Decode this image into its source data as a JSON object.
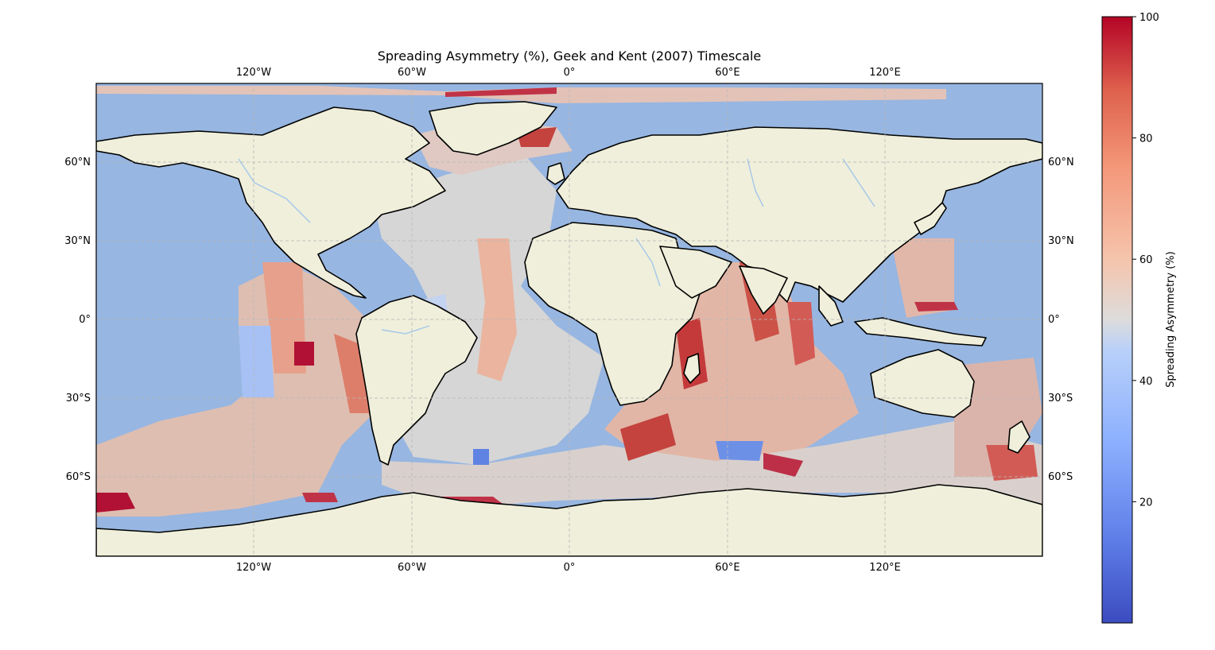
{
  "map": {
    "title": "Spreading Asymmetry (%), Geek and Kent (2007) Timescale",
    "projection": "PlateCarree",
    "lon_range": [
      -180,
      180
    ],
    "lat_range": [
      -90,
      90
    ],
    "gridlines": true,
    "colors": {
      "ocean": "#97b6e1",
      "land": "#efefdb",
      "coast": "#000000",
      "rivers": "#a4c6ea",
      "grid": "#b8b8b8"
    },
    "x_ticks_top": [
      "120°W",
      "60°W",
      "0°",
      "60°E",
      "120°E"
    ],
    "x_ticks_bottom": [
      "120°W",
      "60°W",
      "0°",
      "60°E",
      "120°E"
    ],
    "y_ticks_left": [
      "60°N",
      "30°N",
      "0°",
      "30°S",
      "60°S"
    ],
    "y_ticks_right": [
      "60°N",
      "30°N",
      "0°",
      "30°S",
      "60°S"
    ]
  },
  "colorbar": {
    "label": "Spreading Asymmetry (%)",
    "colormap": "coolwarm",
    "range": [
      0,
      100
    ],
    "ticks": [
      "100",
      "80",
      "60",
      "40",
      "20"
    ],
    "tick_values": [
      100,
      80,
      60,
      40,
      20
    ]
  }
}
